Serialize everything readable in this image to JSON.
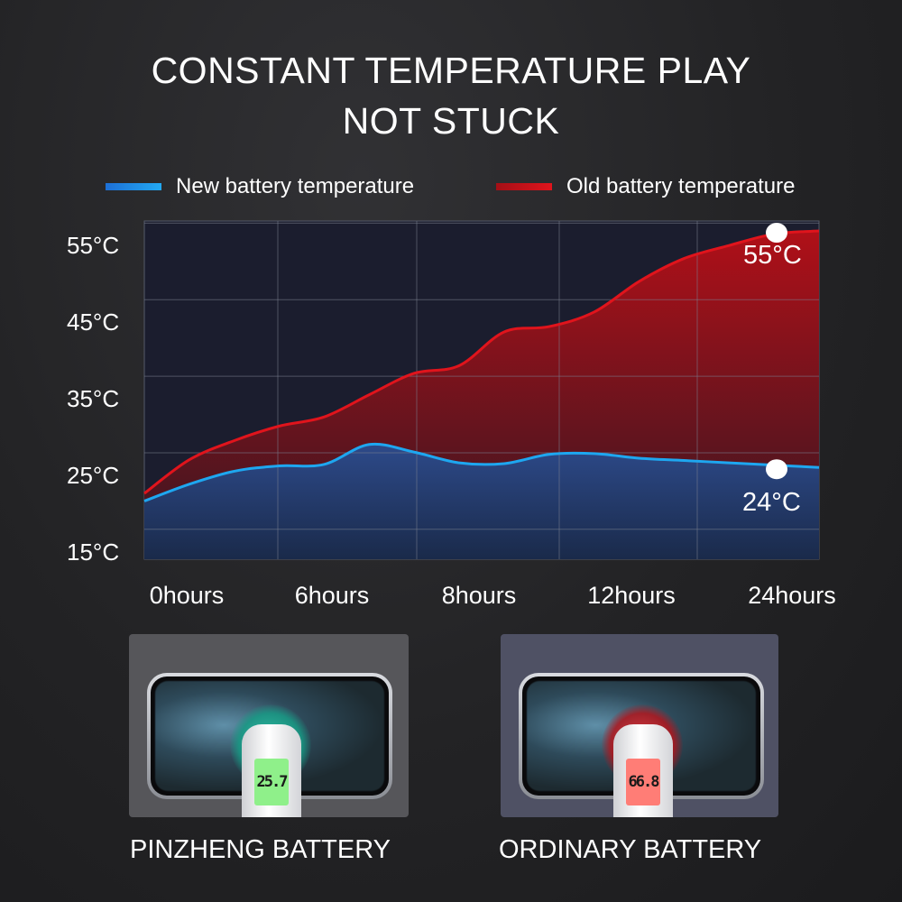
{
  "title": {
    "line1": "CONSTANT TEMPERATURE PLAY",
    "line2": "NOT STUCK"
  },
  "chart_data": {
    "type": "area",
    "title": "",
    "xlabel": "",
    "ylabel": "",
    "x_tick_labels": [
      "0hours",
      "6hours",
      "8hours",
      "12hours",
      "24hours"
    ],
    "y_tick_labels": [
      "55°C",
      "45°C",
      "35°C",
      "25°C",
      "15°C"
    ],
    "y_ticks": [
      55,
      45,
      35,
      25,
      15
    ],
    "ylim": [
      12.5,
      56.7
    ],
    "grid": true,
    "legend_placement": "top",
    "series": [
      {
        "name": "New battery temperature",
        "color": "#1ea7f0",
        "values": [
          20.1,
          22.3,
          24.0,
          24.7,
          24.9,
          27.5,
          26.5,
          25.1,
          25.0,
          26.2,
          26.3,
          25.7,
          25.4,
          25.1,
          24.8,
          24.5
        ],
        "end_label": "24°C"
      },
      {
        "name": "Old battery temperature",
        "color": "#e0141c",
        "values": [
          21.1,
          25.5,
          28.0,
          29.9,
          31.1,
          34.0,
          36.8,
          37.8,
          42.2,
          42.9,
          44.8,
          48.8,
          51.8,
          53.5,
          55.0,
          55.4
        ],
        "end_label": "55°C"
      }
    ]
  },
  "panels": [
    {
      "caption": "PINZHENG BATTERY",
      "reading": "25.7",
      "color": "#2fd6b0"
    },
    {
      "caption": "ORDINARY BATTERY",
      "reading": "66.8",
      "color": "#ff3c3c"
    }
  ]
}
